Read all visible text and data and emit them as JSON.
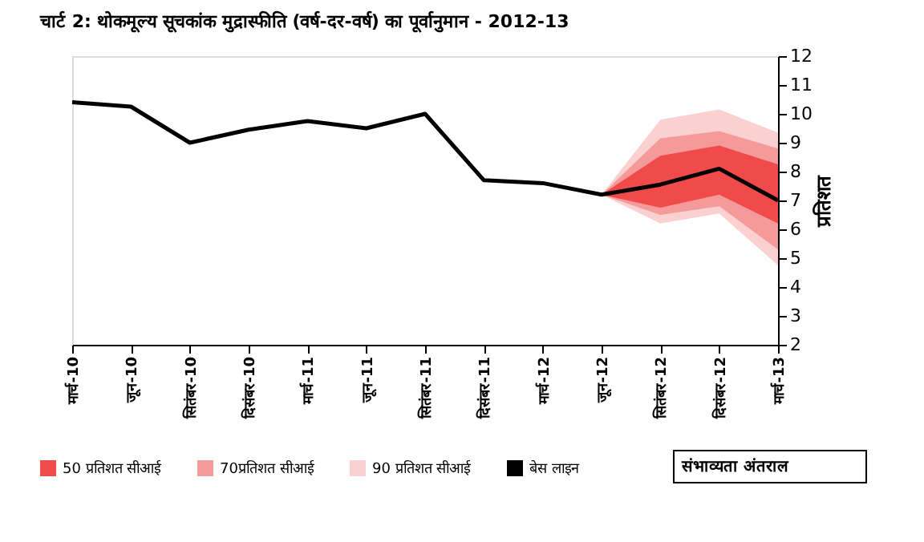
{
  "chart_data": {
    "type": "line",
    "title": "चार्ट 2: थोकमूल्य सूचकांक मुद्रास्फीति (वर्ष-दर-वर्ष) का पूर्वानुमान - 2012-13",
    "ylabel": "प्रतिशत",
    "legend_title": "संभाव्यता अंतराल",
    "categories": [
      "मार्च-10",
      "जून-10",
      "सितंबर-10",
      "दिसंबर-10",
      "मार्च-11",
      "जून-11",
      "सितंबर-11",
      "दिसंबर-11",
      "मार्च-12",
      "जून-12",
      "सितंबर-12",
      "दिसंबर-12",
      "मार्च-13"
    ],
    "series": [
      {
        "name": "50 प्रतिशत सीआई",
        "type": "area",
        "color": "#f04a4a",
        "values": [
          null,
          null,
          null,
          null,
          null,
          null,
          null,
          null,
          null,
          null,
          null,
          null,
          null
        ],
        "lower": [
          null,
          null,
          null,
          null,
          null,
          null,
          null,
          null,
          null,
          7.2,
          6.75,
          7.2,
          6.2
        ],
        "upper": [
          null,
          null,
          null,
          null,
          null,
          null,
          null,
          null,
          null,
          7.2,
          8.55,
          8.9,
          8.25
        ]
      },
      {
        "name": "70प्रतिशत सीआई",
        "type": "area",
        "color": "#f59a9a",
        "values": [
          null,
          null,
          null,
          null,
          null,
          null,
          null,
          null,
          null,
          null,
          null,
          null,
          null
        ],
        "lower": [
          null,
          null,
          null,
          null,
          null,
          null,
          null,
          null,
          null,
          7.2,
          6.5,
          6.8,
          5.3
        ],
        "upper": [
          null,
          null,
          null,
          null,
          null,
          null,
          null,
          null,
          null,
          7.2,
          9.15,
          9.4,
          8.8
        ]
      },
      {
        "name": "90 प्रतिशत सीआई",
        "type": "area",
        "color": "#fbd0d0",
        "values": [
          null,
          null,
          null,
          null,
          null,
          null,
          null,
          null,
          null,
          null,
          null,
          null,
          null
        ],
        "lower": [
          null,
          null,
          null,
          null,
          null,
          null,
          null,
          null,
          null,
          7.2,
          6.2,
          6.55,
          4.75
        ],
        "upper": [
          null,
          null,
          null,
          null,
          null,
          null,
          null,
          null,
          null,
          7.2,
          9.8,
          10.15,
          9.35
        ]
      },
      {
        "name": "बेस लाइन",
        "type": "line",
        "color": "#000000",
        "values": [
          10.4,
          10.25,
          9.0,
          9.45,
          9.75,
          9.5,
          10.0,
          7.7,
          7.6,
          7.2,
          7.55,
          8.1,
          7.0
        ]
      }
    ],
    "ylim": [
      2,
      12
    ],
    "yticks": [
      2,
      3,
      4,
      5,
      6,
      7,
      8,
      9,
      10,
      11,
      12
    ],
    "grid": false,
    "legend": "bottom"
  }
}
